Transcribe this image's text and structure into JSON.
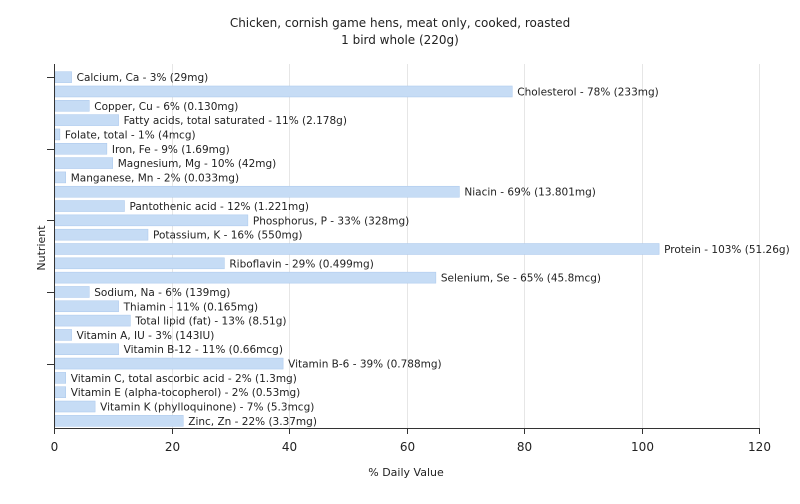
{
  "chart_data": {
    "type": "bar",
    "orientation": "horizontal",
    "title": "Chicken, cornish game hens, meat only, cooked, roasted",
    "subtitle": "1 bird whole (220g)",
    "xlabel": "% Daily Value",
    "ylabel": "Nutrient",
    "xlim": [
      0,
      120
    ],
    "xticks": [
      0,
      20,
      40,
      60,
      80,
      100,
      120
    ],
    "grid": true,
    "bar_color": "#c6dcf5",
    "bar_stroke": "#a9c7ec",
    "grid_color": "#e6e6e6",
    "axis_color": "#333333",
    "categories": [
      "Calcium, Ca - 3% (29mg)",
      "Cholesterol - 78% (233mg)",
      "Copper, Cu - 6% (0.130mg)",
      "Fatty acids, total saturated - 11% (2.178g)",
      "Folate, total - 1% (4mcg)",
      "Iron, Fe - 9% (1.69mg)",
      "Magnesium, Mg - 10% (42mg)",
      "Manganese, Mn - 2% (0.033mg)",
      "Niacin - 69% (13.801mg)",
      "Pantothenic acid - 12% (1.221mg)",
      "Phosphorus, P - 33% (328mg)",
      "Potassium, K - 16% (550mg)",
      "Protein - 103% (51.26g)",
      "Riboflavin - 29% (0.499mg)",
      "Selenium, Se - 65% (45.8mcg)",
      "Sodium, Na - 6% (139mg)",
      "Thiamin - 11% (0.165mg)",
      "Total lipid (fat) - 13% (8.51g)",
      "Vitamin A, IU - 3% (143IU)",
      "Vitamin B-12 - 11% (0.66mcg)",
      "Vitamin B-6 - 39% (0.788mg)",
      "Vitamin C, total ascorbic acid - 2% (1.3mg)",
      "Vitamin E (alpha-tocopherol) - 2% (0.53mg)",
      "Vitamin K (phylloquinone) - 7% (5.3mcg)",
      "Zinc, Zn - 22% (3.37mg)"
    ],
    "values": [
      3,
      78,
      6,
      11,
      1,
      9,
      10,
      2,
      69,
      12,
      33,
      16,
      103,
      29,
      65,
      6,
      11,
      13,
      3,
      11,
      39,
      2,
      2,
      7,
      22
    ]
  }
}
